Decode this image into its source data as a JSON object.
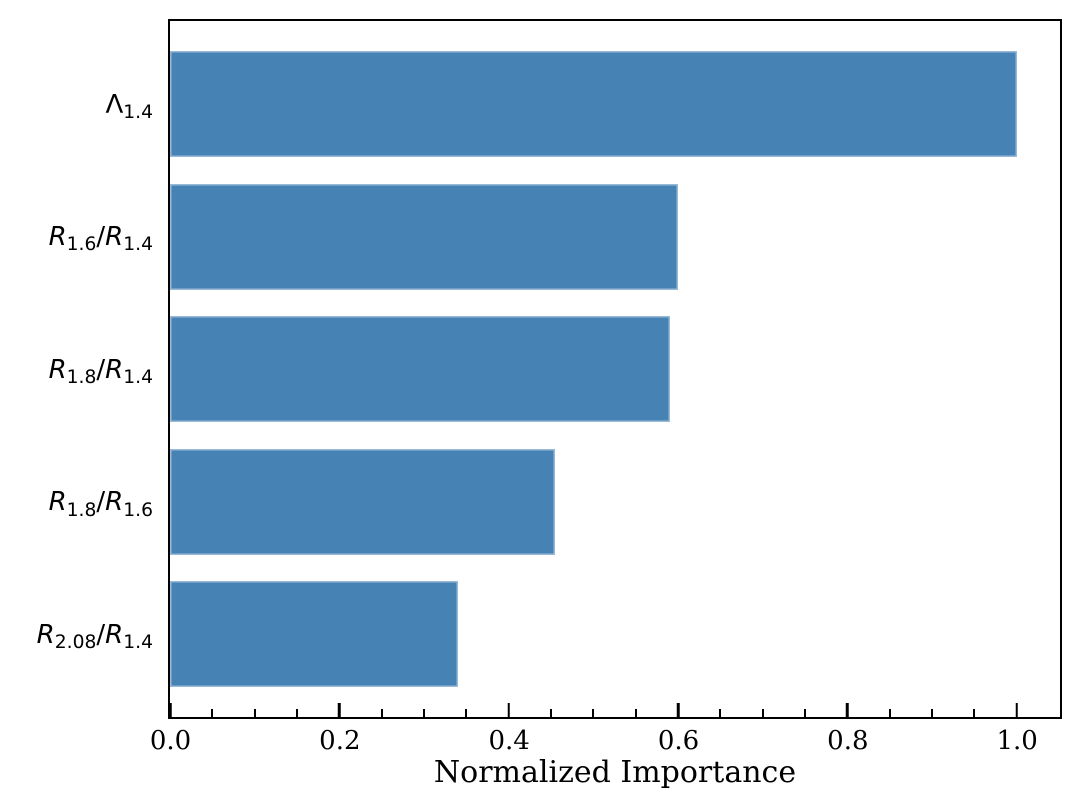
{
  "chart_data": {
    "type": "bar",
    "orientation": "horizontal",
    "title": "",
    "xlabel": "Normalized Importance",
    "ylabel": "",
    "categories": [
      "Λ_{1.4}",
      "R_{1.6}/R_{1.4}",
      "R_{1.8}/R_{1.4}",
      "R_{1.8}/R_{1.6}",
      "R_{2.08}/R_{1.4}"
    ],
    "values": [
      1.0,
      0.6,
      0.59,
      0.455,
      0.34
    ],
    "xlim": [
      0,
      1.05
    ],
    "x_ticks": [
      0.0,
      0.2,
      0.4,
      0.6,
      0.8,
      1.0
    ],
    "x_tick_labels": [
      "0.0",
      "0.2",
      "0.4",
      "0.6",
      "0.8",
      "1.0"
    ],
    "minor_tick_step": 0.05,
    "grid": false,
    "legend": "none",
    "bar_color": "#4682B4",
    "axis_color": "#000000",
    "background_color": "#ffffff"
  }
}
